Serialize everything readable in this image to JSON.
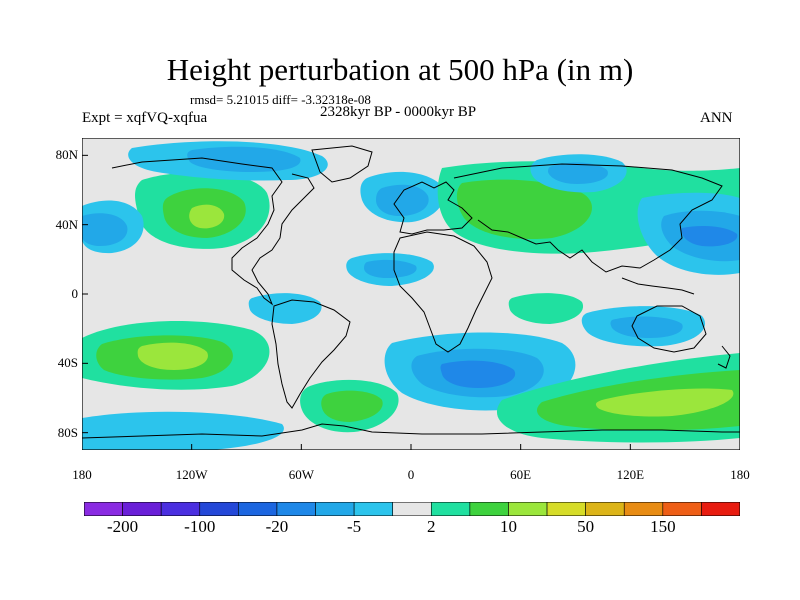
{
  "header": {
    "title": "Height perturbation at 500 hPa (in m)",
    "stats": "rmsd= 5.21015 diff= -3.32318e-08",
    "experiment": "Expt = xqfVQ-xqfua",
    "period": "2328kyr BP - 0000kyr BP",
    "season": "ANN"
  },
  "map": {
    "projection": "cylindrical-equidistant",
    "lon_range": [
      -180,
      180
    ],
    "lat_range": [
      -90,
      90
    ],
    "lat_ticks": [
      {
        "value": 80,
        "label": "80N"
      },
      {
        "value": 40,
        "label": "40N"
      },
      {
        "value": 0,
        "label": "0"
      },
      {
        "value": -40,
        "label": "40S"
      },
      {
        "value": -80,
        "label": "80S"
      }
    ],
    "lon_ticks": [
      {
        "value": -180,
        "label": "180"
      },
      {
        "value": -120,
        "label": "120W"
      },
      {
        "value": -60,
        "label": "60W"
      },
      {
        "value": 0,
        "label": "0"
      },
      {
        "value": 60,
        "label": "60E"
      },
      {
        "value": 120,
        "label": "120E"
      },
      {
        "value": 180,
        "label": "180"
      }
    ],
    "background_color": "#e6e6e6",
    "coastline_color": "#000000"
  },
  "colorbar": {
    "colors": [
      "#8a2be2",
      "#6a1fd8",
      "#4b2fe0",
      "#2448d8",
      "#1c66e0",
      "#1f88e8",
      "#22a8e8",
      "#2cc4ec",
      "#e6e6e6",
      "#20e0a0",
      "#3ed23e",
      "#9be63c",
      "#d6dc28",
      "#dcb418",
      "#e88c14",
      "#ee5e16",
      "#e81c10"
    ],
    "labels": [
      {
        "boundary": 1,
        "text": "-200"
      },
      {
        "boundary": 3,
        "text": "-100"
      },
      {
        "boundary": 5,
        "text": "-20"
      },
      {
        "boundary": 7,
        "text": "-5"
      },
      {
        "boundary": 9,
        "text": "2"
      },
      {
        "boundary": 11,
        "text": "10"
      },
      {
        "boundary": 13,
        "text": "50"
      },
      {
        "boundary": 15,
        "text": "150"
      }
    ]
  }
}
